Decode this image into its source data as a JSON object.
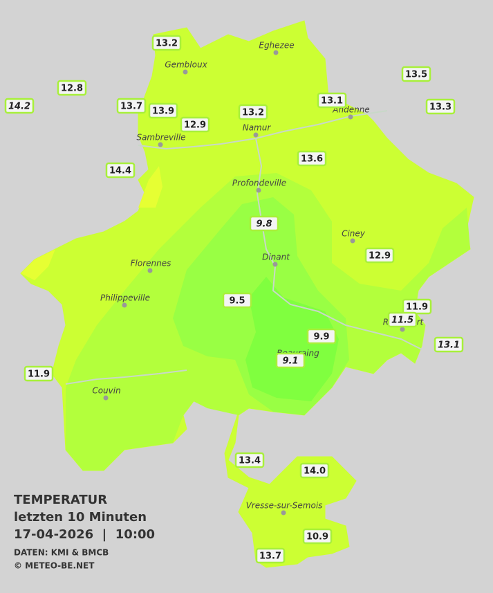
{
  "title": "TEMPERATUR",
  "subtitle": "letzten 10 Minuten",
  "datetime": "17-04-2026  |  10:00",
  "source": "DATEN: KMI & BMCB",
  "credit": "© METEO-BE.NET",
  "cities": [
    "Eghezee",
    "Gembloux",
    "Namur",
    "Andenne",
    "Sambreville",
    "Profondeville",
    "Ciney",
    "Dinant",
    "Florennes",
    "Philippeville",
    "Rochefort",
    "Beauraing",
    "Couvin",
    "Vresse-sur-Semois"
  ],
  "stations": [
    {
      "label": "13.2"
    },
    {
      "label": "12.8"
    },
    {
      "label": "14.2",
      "italic": true
    },
    {
      "label": "13.7"
    },
    {
      "label": "13.9"
    },
    {
      "label": "12.9"
    },
    {
      "label": "13.2"
    },
    {
      "label": "13.1"
    },
    {
      "label": "13.5"
    },
    {
      "label": "13.3"
    },
    {
      "label": "14.4"
    },
    {
      "label": "13.6"
    },
    {
      "label": "9.8",
      "italic": true
    },
    {
      "label": "12.9"
    },
    {
      "label": "9.5"
    },
    {
      "label": "11.9"
    },
    {
      "label": "11.5",
      "italic": true
    },
    {
      "label": "9.9"
    },
    {
      "label": "9.1",
      "italic": true
    },
    {
      "label": "13.1",
      "italic": true
    },
    {
      "label": "11.9"
    },
    {
      "label": "13.4"
    },
    {
      "label": "14.0"
    },
    {
      "label": "10.9"
    },
    {
      "label": "13.7"
    }
  ]
}
